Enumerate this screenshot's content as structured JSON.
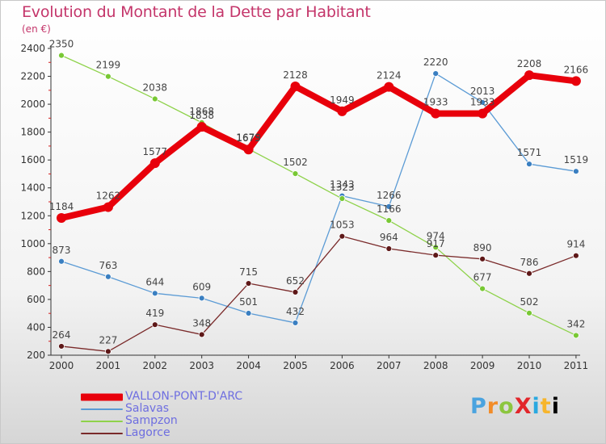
{
  "title": "Evolution du Montant de la Dette par Habitant",
  "unit": "(en €)",
  "logo_text": "ProXiti",
  "chart_data": {
    "type": "line",
    "title": "Evolution du Montant de la Dette par Habitant",
    "subtitle": "(en €)",
    "xlabel": "",
    "ylabel": "",
    "x": [
      "2000",
      "2001",
      "2002",
      "2003",
      "2004",
      "2005",
      "2006",
      "2007",
      "2008",
      "2009",
      "2010",
      "2011"
    ],
    "ylim": [
      200,
      2400
    ],
    "yticks": [
      200,
      400,
      600,
      800,
      1000,
      1200,
      1400,
      1600,
      1800,
      2000,
      2200,
      2400
    ],
    "grid": false,
    "legend_position": "bottom-left",
    "series": [
      {
        "name": "VALLON-PONT-D'ARC",
        "color": "#e8000b",
        "width": "thick",
        "values": [
          1184,
          1262,
          1577,
          1838,
          1675,
          2128,
          1949,
          2124,
          1933,
          1933,
          2208,
          2166
        ]
      },
      {
        "name": "Salavas",
        "color": "#5b9bd5",
        "point_color": "#3a7fc1",
        "values": [
          873,
          763,
          644,
          609,
          501,
          432,
          1343,
          1266,
          2220,
          2013,
          1571,
          1519
        ]
      },
      {
        "name": "Sampzon",
        "color": "#8ed24a",
        "point_color": "#78c834",
        "values": [
          2350,
          2199,
          2038,
          1868,
          1679,
          1502,
          1323,
          1166,
          974,
          677,
          502,
          342
        ]
      },
      {
        "name": "Lagorce",
        "color": "#7a2a2a",
        "point_color": "#5e1818",
        "values": [
          264,
          227,
          419,
          348,
          715,
          652,
          1053,
          964,
          917,
          890,
          786,
          914
        ]
      }
    ]
  }
}
